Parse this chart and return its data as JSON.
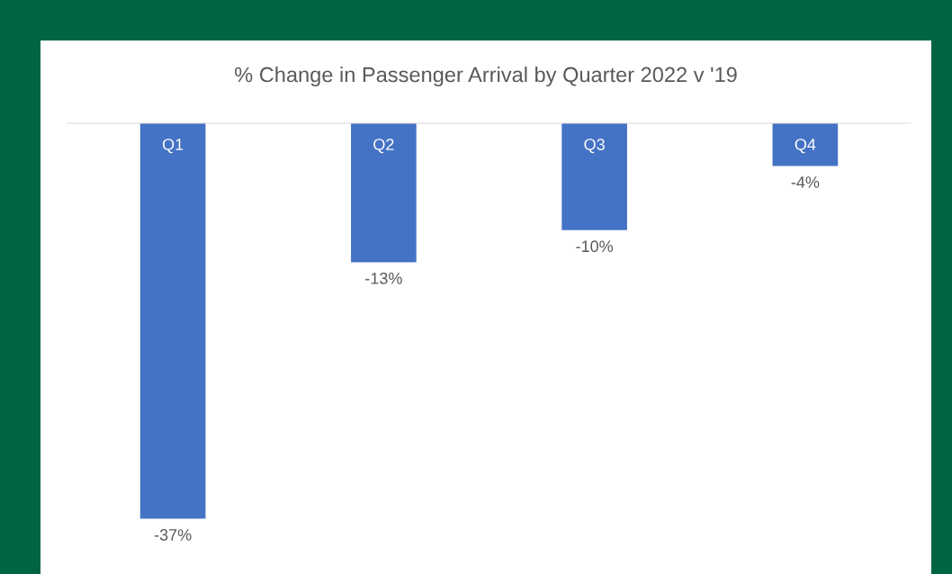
{
  "chart_data": {
    "type": "bar",
    "title": "% Change in Passenger Arrival by Quarter 2022 v '19",
    "categories": [
      "Q1",
      "Q2",
      "Q3",
      "Q4"
    ],
    "values": [
      -37,
      -13,
      -10,
      -4
    ],
    "color": "#4472c4",
    "value_labels": [
      "-37%",
      "-13%",
      "-10%",
      "-4%"
    ]
  }
}
